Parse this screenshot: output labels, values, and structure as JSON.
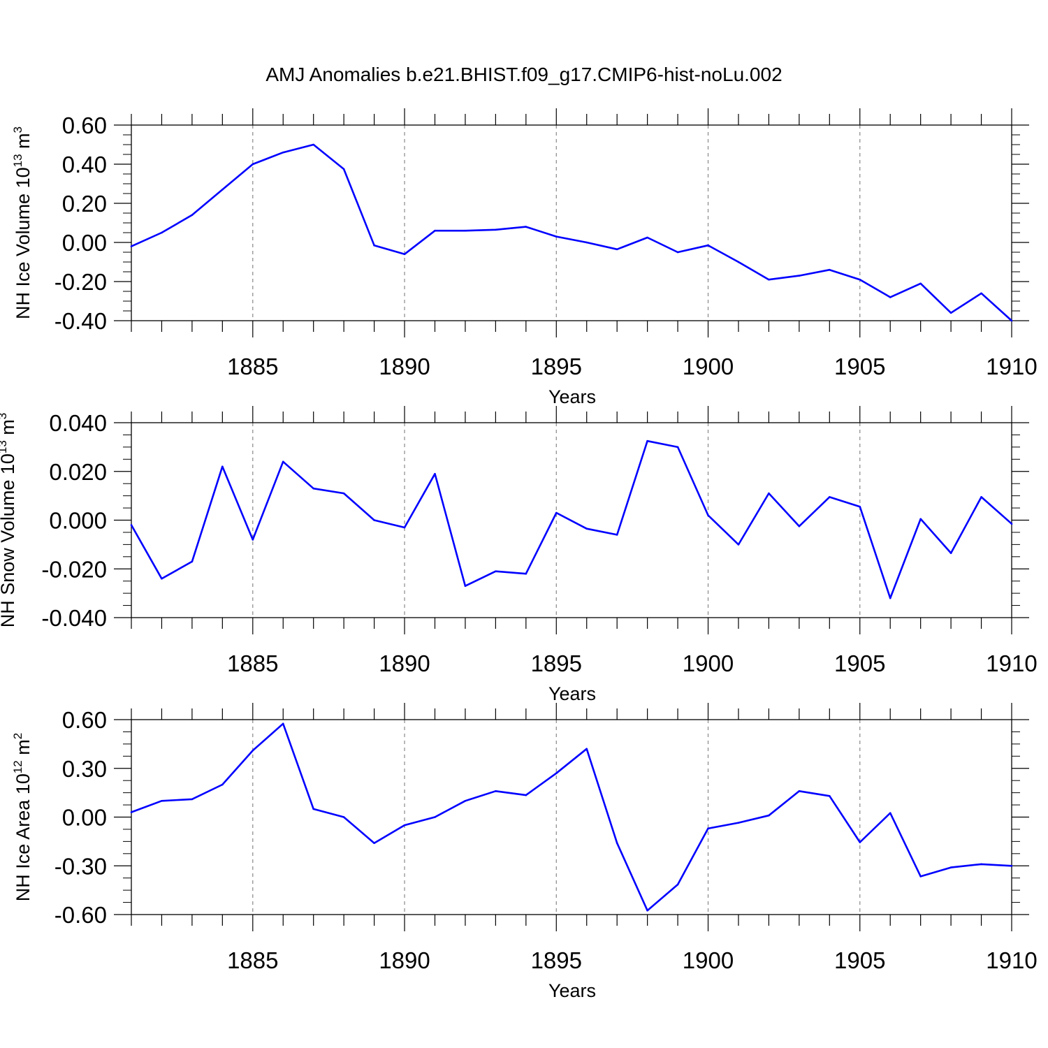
{
  "figure": {
    "title": "AMJ Anomalies b.e21.BHIST.f09_g17.CMIP6-hist-noLu.002",
    "line_color": "#0000ff",
    "axis_color": "#000000",
    "grid_color": "#888888"
  },
  "chart_data": [
    {
      "type": "line",
      "title": "",
      "xlabel": "Years",
      "ylabel": {
        "text": "NH Ice Volume 10",
        "sup": "13",
        "unit": " m",
        "unit_sup": "3"
      },
      "xlim": [
        1881,
        1910
      ],
      "ylim": [
        -0.4,
        0.6
      ],
      "x_ticks": [
        1885,
        1890,
        1895,
        1900,
        1905,
        1910
      ],
      "x_tick_labels": [
        "1885",
        "1890",
        "1895",
        "1900",
        "1905",
        "1910"
      ],
      "y_ticks": [
        -0.4,
        -0.2,
        0.0,
        0.2,
        0.4,
        0.6
      ],
      "y_tick_labels": [
        "-0.40",
        "-0.20",
        "0.00",
        "0.20",
        "0.40",
        "0.60"
      ],
      "grid": "vertical dashed at major x ticks",
      "series": [
        {
          "name": "NH Ice Volume",
          "x": [
            1881,
            1882,
            1883,
            1884,
            1885,
            1886,
            1887,
            1888,
            1889,
            1890,
            1891,
            1892,
            1893,
            1894,
            1895,
            1896,
            1897,
            1898,
            1899,
            1900,
            1901,
            1902,
            1903,
            1904,
            1905,
            1906,
            1907,
            1908,
            1909,
            1910
          ],
          "values": [
            -0.02,
            0.05,
            0.14,
            0.27,
            0.4,
            0.46,
            0.5,
            0.375,
            -0.015,
            -0.06,
            0.06,
            0.06,
            0.065,
            0.08,
            0.03,
            0.0,
            -0.035,
            0.025,
            -0.05,
            -0.015,
            -0.1,
            -0.19,
            -0.17,
            -0.14,
            -0.19,
            -0.28,
            -0.21,
            -0.36,
            -0.26,
            -0.4
          ]
        }
      ]
    },
    {
      "type": "line",
      "title": "",
      "xlabel": "Years",
      "ylabel": {
        "text": "NH Snow Volume 10",
        "sup": "13",
        "unit": " m",
        "unit_sup": "3"
      },
      "xlim": [
        1881,
        1910
      ],
      "ylim": [
        -0.04,
        0.04
      ],
      "x_ticks": [
        1885,
        1890,
        1895,
        1900,
        1905,
        1910
      ],
      "x_tick_labels": [
        "1885",
        "1890",
        "1895",
        "1900",
        "1905",
        "1910"
      ],
      "y_ticks": [
        -0.04,
        -0.02,
        0.0,
        0.02,
        0.04
      ],
      "y_tick_labels": [
        "-0.040",
        "-0.020",
        "0.000",
        "0.020",
        "0.040"
      ],
      "grid": "vertical dashed at major x ticks",
      "series": [
        {
          "name": "NH Snow Volume",
          "x": [
            1881,
            1882,
            1883,
            1884,
            1885,
            1886,
            1887,
            1888,
            1889,
            1890,
            1891,
            1892,
            1893,
            1894,
            1895,
            1896,
            1897,
            1898,
            1899,
            1900,
            1901,
            1902,
            1903,
            1904,
            1905,
            1906,
            1907,
            1908,
            1909,
            1910
          ],
          "values": [
            -0.002,
            -0.024,
            -0.017,
            0.022,
            -0.008,
            0.024,
            0.013,
            0.011,
            0.0,
            -0.003,
            0.019,
            -0.027,
            -0.021,
            -0.022,
            0.003,
            -0.0035,
            -0.006,
            0.0325,
            0.03,
            0.002,
            -0.01,
            0.011,
            -0.0025,
            0.0095,
            0.0055,
            -0.032,
            0.0005,
            -0.0135,
            0.0095,
            -0.0015
          ]
        }
      ]
    },
    {
      "type": "line",
      "title": "",
      "xlabel": "Years",
      "ylabel": {
        "text": "NH Ice Area 10",
        "sup": "12",
        "unit": " m",
        "unit_sup": "2"
      },
      "xlim": [
        1881,
        1910
      ],
      "ylim": [
        -0.6,
        0.6
      ],
      "x_ticks": [
        1885,
        1890,
        1895,
        1900,
        1905,
        1910
      ],
      "x_tick_labels": [
        "1885",
        "1890",
        "1895",
        "1900",
        "1905",
        "1910"
      ],
      "y_ticks": [
        -0.6,
        -0.3,
        0.0,
        0.3,
        0.6
      ],
      "y_tick_labels": [
        "-0.60",
        "-0.30",
        "0.00",
        "0.30",
        "0.60"
      ],
      "grid": "vertical dashed at major x ticks",
      "series": [
        {
          "name": "NH Ice Area",
          "x": [
            1881,
            1882,
            1883,
            1884,
            1885,
            1886,
            1887,
            1888,
            1889,
            1890,
            1891,
            1892,
            1893,
            1894,
            1895,
            1896,
            1897,
            1898,
            1899,
            1900,
            1901,
            1902,
            1903,
            1904,
            1905,
            1906,
            1907,
            1908,
            1909,
            1910
          ],
          "values": [
            0.03,
            0.1,
            0.11,
            0.2,
            0.41,
            0.575,
            0.05,
            0.0,
            -0.16,
            -0.05,
            0.0,
            0.1,
            0.16,
            0.135,
            0.27,
            0.42,
            -0.16,
            -0.575,
            -0.415,
            -0.07,
            -0.035,
            0.01,
            0.16,
            0.13,
            -0.155,
            0.025,
            -0.365,
            -0.31,
            -0.29,
            -0.3
          ]
        }
      ]
    }
  ]
}
